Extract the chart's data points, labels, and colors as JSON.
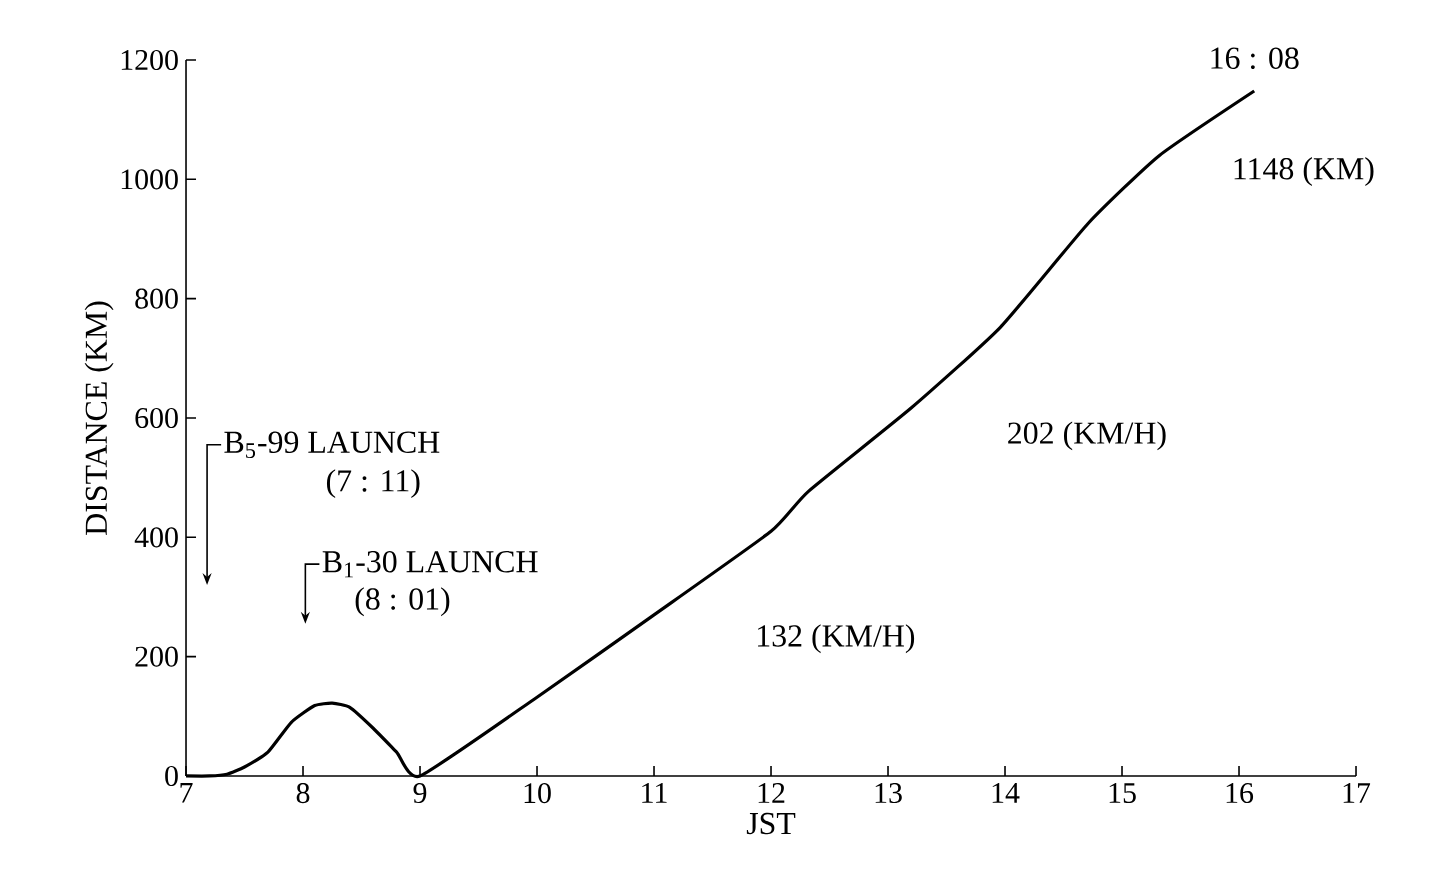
{
  "chart_data": {
    "type": "line",
    "xlabel": "JST",
    "ylabel": "DISTANCE (KM)",
    "x": [
      7,
      7.2,
      7.35,
      7.5,
      7.7,
      7.9,
      8.1,
      8.25,
      8.4,
      8.6,
      8.8,
      9,
      10,
      11,
      12,
      12.32,
      13.2,
      13.96,
      14.71,
      15.32,
      16.13
    ],
    "series": [
      {
        "color": "#000000",
        "values": [
          0,
          0,
          3,
          15,
          40,
          90,
          118,
          122,
          115,
          80,
          40,
          0,
          132,
          270,
          410,
          477,
          617,
          752,
          926,
          1040,
          1148
        ]
      }
    ],
    "xlim": [
      7,
      17
    ],
    "ylim": [
      0,
      1200
    ],
    "xticks": [
      7,
      8,
      9,
      10,
      11,
      12,
      13,
      14,
      15,
      16,
      17
    ],
    "yticks": [
      0,
      200,
      400,
      600,
      800,
      1000,
      1200
    ],
    "grid": false,
    "marker": "none",
    "line_style": "solid",
    "annotations": [
      "B$_{5}$-99 LAUNCH",
      "(7 : 11)",
      "B$_{1}$-30 LAUNCH",
      "(8 : 01)",
      "132 (KM/H)",
      "202 (KM/H)",
      {
        "text": "16 : 08",
        "x": 16.13,
        "y": 1148
      },
      "1148 (KM)"
    ]
  }
}
